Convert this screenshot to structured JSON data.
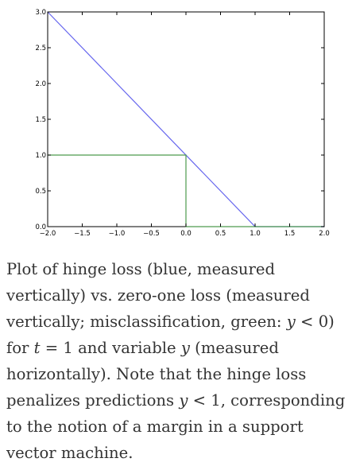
{
  "chart_data": {
    "type": "line",
    "title": "",
    "xlabel": "",
    "ylabel": "",
    "xlim": [
      -2.0,
      2.0
    ],
    "ylim": [
      0.0,
      3.0
    ],
    "xticks": [
      -2.0,
      -1.5,
      -1.0,
      -0.5,
      0.0,
      0.5,
      1.0,
      1.5,
      2.0
    ],
    "xtick_labels": [
      "−2.0",
      "−1.5",
      "−1.0",
      "−0.5",
      "0.0",
      "0.5",
      "1.0",
      "1.5",
      "2.0"
    ],
    "yticks": [
      0.0,
      0.5,
      1.0,
      1.5,
      2.0,
      2.5,
      3.0
    ],
    "ytick_labels": [
      "0.0",
      "0.5",
      "1.0",
      "1.5",
      "2.0",
      "2.5",
      "3.0"
    ],
    "grid": false,
    "legend": "none",
    "series": [
      {
        "color": "#6666ee",
        "x": [
          -2.0,
          1.0,
          2.0
        ],
        "y": [
          3.0,
          0.0,
          0.0
        ]
      },
      {
        "color": "#4d9a4d",
        "x": [
          -2.0,
          0.0,
          0.0,
          2.0
        ],
        "y": [
          1.0,
          1.0,
          0.0,
          0.0
        ]
      }
    ]
  },
  "caption": {
    "t1": "Plot of hinge loss (blue, measured vertically) vs. zero-one loss (measured vertically; misclassification, green: ",
    "m1": "y",
    "t2": " < 0) for ",
    "m2": "t",
    "t3": " = 1 and variable ",
    "m3": "y",
    "t4": " (measured horizontally). Note that the hinge loss penalizes predictions ",
    "m4": "y",
    "t5": " < 1, corresponding to the notion of a margin in a support vector machine."
  }
}
